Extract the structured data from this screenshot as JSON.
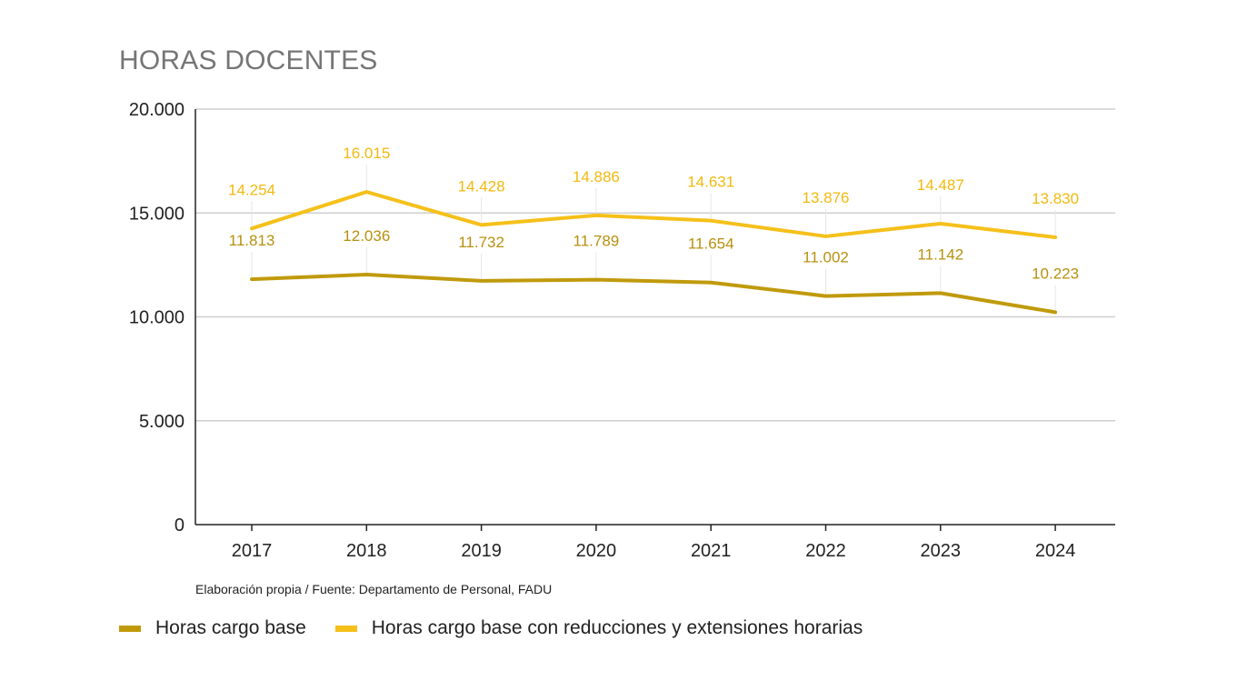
{
  "chart_data": {
    "type": "line",
    "title": "HORAS DOCENTES",
    "xlabel": "",
    "ylabel": "",
    "categories": [
      "2017",
      "2018",
      "2019",
      "2020",
      "2021",
      "2022",
      "2023",
      "2024"
    ],
    "ylim": [
      0,
      20000
    ],
    "yticks": [
      0,
      5000,
      10000,
      15000,
      20000
    ],
    "ytick_labels": [
      "0",
      "5.000",
      "10.000",
      "15.000",
      "20.000"
    ],
    "grid": true,
    "legend_position": "bottom-left",
    "series": [
      {
        "name": "Horas cargo base",
        "color": "#c09a0c",
        "values": [
          11813,
          12036,
          11732,
          11789,
          11654,
          11002,
          11142,
          10223
        ],
        "labels": [
          "11.813",
          "12.036",
          "11.732",
          "11.789",
          "11.654",
          "11.002",
          "11.142",
          "10.223"
        ]
      },
      {
        "name": "Horas cargo base con reducciones y extensiones horarias",
        "color": "#f5c01a",
        "values": [
          14254,
          16015,
          14428,
          14886,
          14631,
          13876,
          14487,
          13830
        ],
        "labels": [
          "14.254",
          "16.015",
          "14.428",
          "14.886",
          "14.631",
          "13.876",
          "14.487",
          "13.830"
        ]
      }
    ]
  },
  "source_note": "Elaboración propia / Fuente: Departamento de Personal, FADU"
}
